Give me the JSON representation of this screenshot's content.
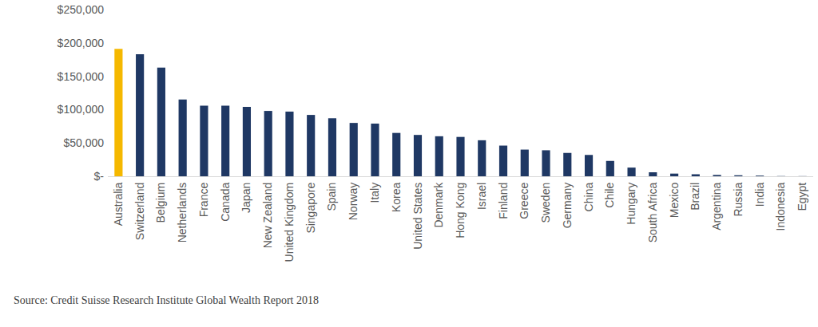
{
  "chart_data": {
    "type": "bar",
    "categories": [
      "Australia",
      "Switzerland",
      "Belgium",
      "Netherlands",
      "France",
      "Canada",
      "Japan",
      "New Zealand",
      "United Kingdom",
      "Singapore",
      "Spain",
      "Norway",
      "Italy",
      "Korea",
      "United States",
      "Denmark",
      "Hong Kong",
      "Israel",
      "Finland",
      "Greece",
      "Sweden",
      "Germany",
      "China",
      "Chile",
      "Hungary",
      "South Africa",
      "Mexico",
      "Brazil",
      "Argentina",
      "Russia",
      "India",
      "Indonesia",
      "Egypt"
    ],
    "values": [
      191000,
      183000,
      163000,
      115000,
      106000,
      106000,
      104000,
      98000,
      97000,
      92000,
      87000,
      80000,
      79000,
      65000,
      62000,
      60000,
      59000,
      54000,
      46000,
      40000,
      39000,
      35000,
      32000,
      23000,
      13000,
      6000,
      4000,
      3000,
      2000,
      1500,
      1000,
      300,
      200
    ],
    "colors": [
      "#f5b800",
      "#1f3864",
      "#1f3864",
      "#1f3864",
      "#1f3864",
      "#1f3864",
      "#1f3864",
      "#1f3864",
      "#1f3864",
      "#1f3864",
      "#1f3864",
      "#1f3864",
      "#1f3864",
      "#1f3864",
      "#1f3864",
      "#1f3864",
      "#1f3864",
      "#1f3864",
      "#1f3864",
      "#1f3864",
      "#1f3864",
      "#1f3864",
      "#1f3864",
      "#1f3864",
      "#1f3864",
      "#1f3864",
      "#1f3864",
      "#1f3864",
      "#1f3864",
      "#1f3864",
      "#1f3864",
      "#1f3864",
      "#1f3864"
    ],
    "ylim": [
      0,
      250000
    ],
    "yticks": [
      {
        "value": 0,
        "label": "$-"
      },
      {
        "value": 50000,
        "label": "$50,000"
      },
      {
        "value": 100000,
        "label": "$100,000"
      },
      {
        "value": 150000,
        "label": "$150,000"
      },
      {
        "value": 200000,
        "label": "$200,000"
      },
      {
        "value": 250000,
        "label": "$250,000"
      }
    ],
    "grid": false,
    "annotations": [
      "Source: Credit Suisse Research Institute Global Wealth Report 2018"
    ]
  }
}
